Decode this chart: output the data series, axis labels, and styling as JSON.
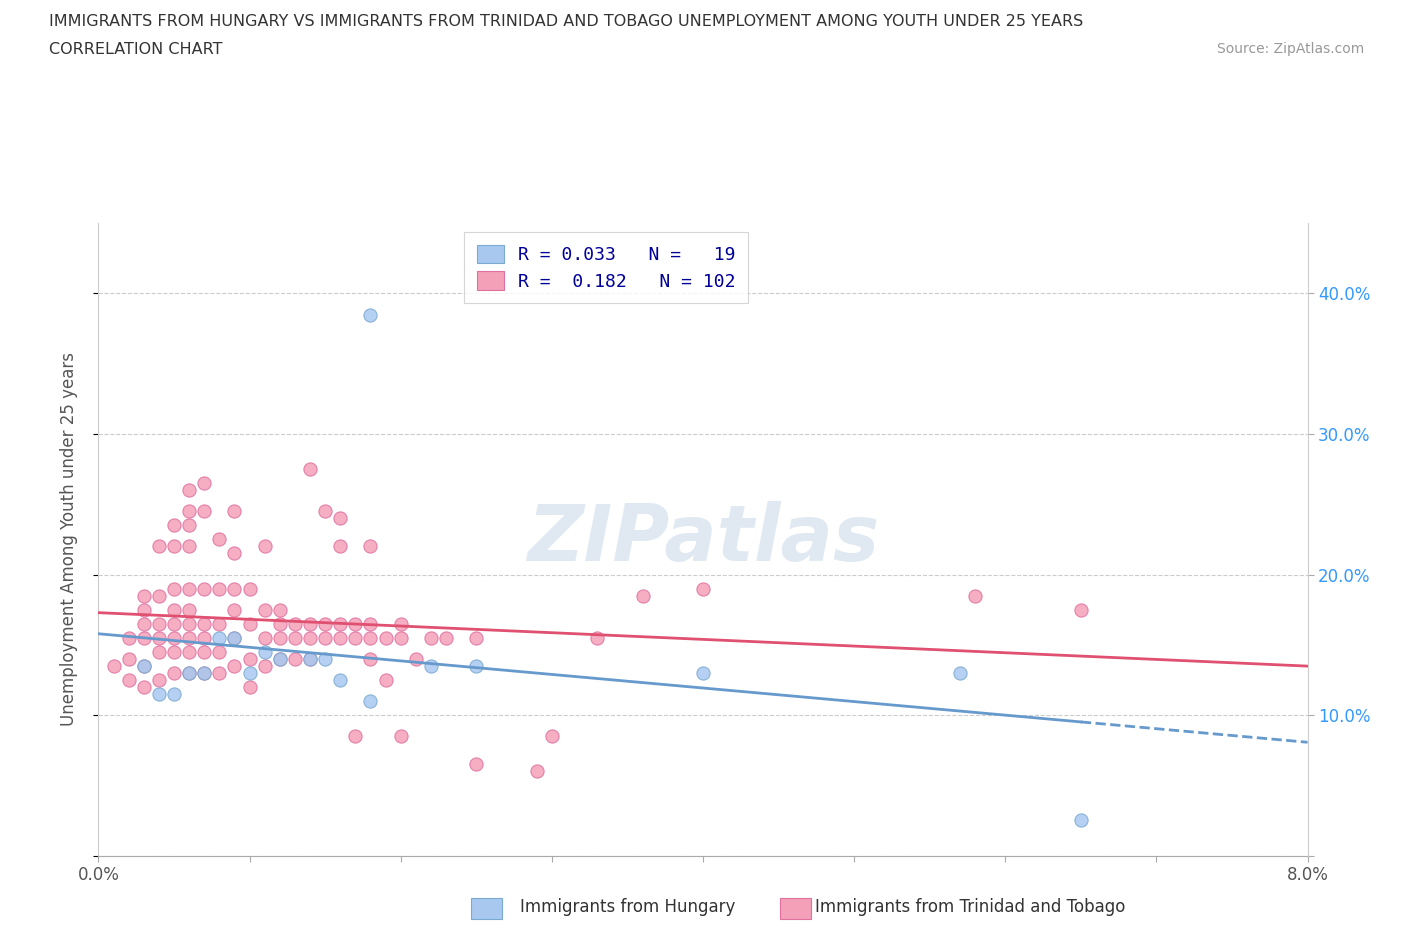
{
  "title_line1": "IMMIGRANTS FROM HUNGARY VS IMMIGRANTS FROM TRINIDAD AND TOBAGO UNEMPLOYMENT AMONG YOUTH UNDER 25 YEARS",
  "title_line2": "CORRELATION CHART",
  "source": "Source: ZipAtlas.com",
  "ylabel": "Unemployment Among Youth under 25 years",
  "xlim": [
    0.0,
    0.08
  ],
  "ylim": [
    0.0,
    0.45
  ],
  "yticks": [
    0.0,
    0.1,
    0.2,
    0.3,
    0.4
  ],
  "ytick_labels": [
    "",
    "10.0%",
    "20.0%",
    "30.0%",
    "40.0%"
  ],
  "xticks": [
    0.0,
    0.01,
    0.02,
    0.03,
    0.04,
    0.05,
    0.06,
    0.07,
    0.08
  ],
  "xtick_labels_show": [
    "0.0%",
    "",
    "",
    "",
    "",
    "",
    "",
    "",
    "8.0%"
  ],
  "watermark": "ZIPatlas",
  "hungary_R": 0.033,
  "hungary_N": 19,
  "tt_R": 0.182,
  "tt_N": 102,
  "hungary_color": "#a8c8f0",
  "hungary_edge_color": "#7aaad0",
  "tt_color": "#f4a0b8",
  "tt_edge_color": "#e070a0",
  "hungary_line_color": "#6699cc",
  "tt_line_color": "#e05070",
  "legend_label1": "Immigrants from Hungary",
  "legend_label2": "Immigrants from Trinidad and Tobago",
  "hungary_scatter": [
    [
      0.003,
      0.135
    ],
    [
      0.004,
      0.115
    ],
    [
      0.005,
      0.115
    ],
    [
      0.006,
      0.13
    ],
    [
      0.007,
      0.13
    ],
    [
      0.008,
      0.155
    ],
    [
      0.009,
      0.155
    ],
    [
      0.01,
      0.13
    ],
    [
      0.011,
      0.145
    ],
    [
      0.012,
      0.14
    ],
    [
      0.014,
      0.14
    ],
    [
      0.015,
      0.14
    ],
    [
      0.016,
      0.125
    ],
    [
      0.018,
      0.11
    ],
    [
      0.022,
      0.135
    ],
    [
      0.025,
      0.135
    ],
    [
      0.04,
      0.13
    ],
    [
      0.057,
      0.13
    ],
    [
      0.065,
      0.025
    ]
  ],
  "hungary_outlier": [
    0.018,
    0.385
  ],
  "tt_scatter": [
    [
      0.001,
      0.135
    ],
    [
      0.002,
      0.125
    ],
    [
      0.002,
      0.14
    ],
    [
      0.002,
      0.155
    ],
    [
      0.003,
      0.12
    ],
    [
      0.003,
      0.135
    ],
    [
      0.003,
      0.155
    ],
    [
      0.003,
      0.165
    ],
    [
      0.003,
      0.175
    ],
    [
      0.003,
      0.185
    ],
    [
      0.004,
      0.125
    ],
    [
      0.004,
      0.145
    ],
    [
      0.004,
      0.155
    ],
    [
      0.004,
      0.165
    ],
    [
      0.004,
      0.185
    ],
    [
      0.004,
      0.22
    ],
    [
      0.005,
      0.13
    ],
    [
      0.005,
      0.145
    ],
    [
      0.005,
      0.155
    ],
    [
      0.005,
      0.165
    ],
    [
      0.005,
      0.175
    ],
    [
      0.005,
      0.19
    ],
    [
      0.005,
      0.22
    ],
    [
      0.005,
      0.235
    ],
    [
      0.006,
      0.13
    ],
    [
      0.006,
      0.145
    ],
    [
      0.006,
      0.155
    ],
    [
      0.006,
      0.165
    ],
    [
      0.006,
      0.175
    ],
    [
      0.006,
      0.19
    ],
    [
      0.006,
      0.22
    ],
    [
      0.006,
      0.235
    ],
    [
      0.006,
      0.245
    ],
    [
      0.006,
      0.26
    ],
    [
      0.007,
      0.13
    ],
    [
      0.007,
      0.145
    ],
    [
      0.007,
      0.155
    ],
    [
      0.007,
      0.165
    ],
    [
      0.007,
      0.19
    ],
    [
      0.007,
      0.245
    ],
    [
      0.007,
      0.265
    ],
    [
      0.008,
      0.13
    ],
    [
      0.008,
      0.145
    ],
    [
      0.008,
      0.165
    ],
    [
      0.008,
      0.19
    ],
    [
      0.008,
      0.225
    ],
    [
      0.009,
      0.135
    ],
    [
      0.009,
      0.155
    ],
    [
      0.009,
      0.175
    ],
    [
      0.009,
      0.19
    ],
    [
      0.009,
      0.215
    ],
    [
      0.009,
      0.245
    ],
    [
      0.01,
      0.12
    ],
    [
      0.01,
      0.14
    ],
    [
      0.01,
      0.165
    ],
    [
      0.01,
      0.19
    ],
    [
      0.011,
      0.135
    ],
    [
      0.011,
      0.155
    ],
    [
      0.011,
      0.175
    ],
    [
      0.011,
      0.22
    ],
    [
      0.012,
      0.14
    ],
    [
      0.012,
      0.155
    ],
    [
      0.012,
      0.165
    ],
    [
      0.012,
      0.175
    ],
    [
      0.013,
      0.14
    ],
    [
      0.013,
      0.155
    ],
    [
      0.013,
      0.165
    ],
    [
      0.014,
      0.14
    ],
    [
      0.014,
      0.155
    ],
    [
      0.014,
      0.165
    ],
    [
      0.014,
      0.275
    ],
    [
      0.015,
      0.155
    ],
    [
      0.015,
      0.165
    ],
    [
      0.015,
      0.245
    ],
    [
      0.016,
      0.155
    ],
    [
      0.016,
      0.165
    ],
    [
      0.016,
      0.24
    ],
    [
      0.017,
      0.085
    ],
    [
      0.017,
      0.155
    ],
    [
      0.017,
      0.165
    ],
    [
      0.018,
      0.14
    ],
    [
      0.018,
      0.155
    ],
    [
      0.018,
      0.165
    ],
    [
      0.019,
      0.125
    ],
    [
      0.019,
      0.155
    ],
    [
      0.02,
      0.085
    ],
    [
      0.02,
      0.155
    ],
    [
      0.02,
      0.165
    ],
    [
      0.021,
      0.14
    ],
    [
      0.022,
      0.155
    ],
    [
      0.023,
      0.155
    ],
    [
      0.025,
      0.065
    ],
    [
      0.025,
      0.155
    ],
    [
      0.029,
      0.06
    ],
    [
      0.03,
      0.085
    ],
    [
      0.033,
      0.155
    ],
    [
      0.036,
      0.185
    ],
    [
      0.04,
      0.19
    ],
    [
      0.058,
      0.185
    ],
    [
      0.065,
      0.175
    ],
    [
      0.016,
      0.22
    ],
    [
      0.018,
      0.22
    ]
  ]
}
